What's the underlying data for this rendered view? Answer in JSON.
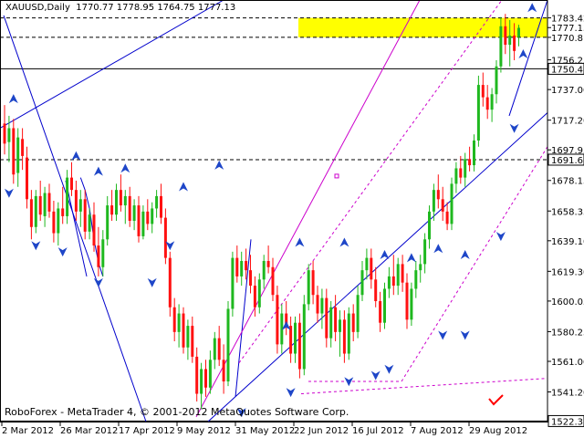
{
  "header": {
    "symbol": "XAUUSD,Daily",
    "open": "1770.77",
    "high": "1778.95",
    "low": "1764.75",
    "close": "1777.13"
  },
  "footer": {
    "text": "RoboForex - MetaTrader 4, © 2001-2012 MetaQuotes Software Corp."
  },
  "colors": {
    "bull": "#1fb81f",
    "bear": "#ff1111",
    "trend": "#0000cc",
    "channel": "#cc00cc",
    "fractal": "#1e46c8",
    "zone": "#ffff00",
    "check": "#ff0000"
  },
  "icons": [
    "fractal-arrow-up-icon",
    "fractal-arrow-down-icon",
    "checkmark-icon"
  ],
  "chart_data": {
    "type": "candlestick",
    "y_ticks": [
      "1783.42",
      "1777.13",
      "1770.81",
      "1756.25",
      "1750.44",
      "1737.00",
      "1717.20",
      "1697.95",
      "1691.60",
      "1678.15",
      "1658.35",
      "1639.10",
      "1619.30",
      "1600.05",
      "1580.25",
      "1561.00",
      "1541.20",
      "1522.34"
    ],
    "highlighted_levels": [
      "1750.44",
      "1691.60",
      "1522.34"
    ],
    "dashed_levels": [
      "1783.42",
      "1770.81",
      "1691.60"
    ],
    "x_labels": [
      "2 Mar 2012",
      "26 Mar 2012",
      "17 Apr 2012",
      "9 May 2012",
      "31 May 2012",
      "22 Jun 2012",
      "16 Jul 2012",
      "7 Aug 2012",
      "29 Aug 2012"
    ],
    "ylim": [
      1522,
      1795
    ],
    "price_zone": [
      "1770.81",
      "1783.42"
    ],
    "candles": [
      {
        "o": 1715,
        "h": 1727,
        "l": 1695,
        "c": 1702
      },
      {
        "o": 1703,
        "h": 1720,
        "l": 1690,
        "c": 1712
      },
      {
        "o": 1712,
        "h": 1718,
        "l": 1676,
        "c": 1682
      },
      {
        "o": 1683,
        "h": 1712,
        "l": 1674,
        "c": 1706
      },
      {
        "o": 1705,
        "h": 1712,
        "l": 1685,
        "c": 1694
      },
      {
        "o": 1693,
        "h": 1700,
        "l": 1660,
        "c": 1666
      },
      {
        "o": 1666,
        "h": 1672,
        "l": 1640,
        "c": 1648
      },
      {
        "o": 1648,
        "h": 1672,
        "l": 1644,
        "c": 1668
      },
      {
        "o": 1668,
        "h": 1678,
        "l": 1652,
        "c": 1656
      },
      {
        "o": 1655,
        "h": 1674,
        "l": 1648,
        "c": 1670
      },
      {
        "o": 1670,
        "h": 1676,
        "l": 1654,
        "c": 1658
      },
      {
        "o": 1658,
        "h": 1665,
        "l": 1638,
        "c": 1644
      },
      {
        "o": 1644,
        "h": 1664,
        "l": 1636,
        "c": 1660
      },
      {
        "o": 1660,
        "h": 1674,
        "l": 1650,
        "c": 1655
      },
      {
        "o": 1655,
        "h": 1685,
        "l": 1650,
        "c": 1680
      },
      {
        "o": 1680,
        "h": 1690,
        "l": 1668,
        "c": 1672
      },
      {
        "o": 1672,
        "h": 1678,
        "l": 1652,
        "c": 1658
      },
      {
        "o": 1658,
        "h": 1672,
        "l": 1648,
        "c": 1666
      },
      {
        "o": 1666,
        "h": 1672,
        "l": 1640,
        "c": 1645
      },
      {
        "o": 1645,
        "h": 1660,
        "l": 1640,
        "c": 1656
      },
      {
        "o": 1656,
        "h": 1664,
        "l": 1632,
        "c": 1636
      },
      {
        "o": 1636,
        "h": 1648,
        "l": 1616,
        "c": 1622
      },
      {
        "o": 1622,
        "h": 1646,
        "l": 1616,
        "c": 1640
      },
      {
        "o": 1640,
        "h": 1668,
        "l": 1636,
        "c": 1662
      },
      {
        "o": 1662,
        "h": 1672,
        "l": 1652,
        "c": 1656
      },
      {
        "o": 1656,
        "h": 1676,
        "l": 1652,
        "c": 1672
      },
      {
        "o": 1672,
        "h": 1682,
        "l": 1658,
        "c": 1662
      },
      {
        "o": 1662,
        "h": 1672,
        "l": 1650,
        "c": 1668
      },
      {
        "o": 1668,
        "h": 1674,
        "l": 1648,
        "c": 1652
      },
      {
        "o": 1652,
        "h": 1666,
        "l": 1646,
        "c": 1662
      },
      {
        "o": 1662,
        "h": 1668,
        "l": 1638,
        "c": 1642
      },
      {
        "o": 1642,
        "h": 1662,
        "l": 1640,
        "c": 1658
      },
      {
        "o": 1658,
        "h": 1666,
        "l": 1646,
        "c": 1650
      },
      {
        "o": 1650,
        "h": 1664,
        "l": 1644,
        "c": 1660
      },
      {
        "o": 1660,
        "h": 1672,
        "l": 1654,
        "c": 1668
      },
      {
        "o": 1668,
        "h": 1676,
        "l": 1650,
        "c": 1654
      },
      {
        "o": 1654,
        "h": 1660,
        "l": 1624,
        "c": 1628
      },
      {
        "o": 1628,
        "h": 1632,
        "l": 1590,
        "c": 1596
      },
      {
        "o": 1596,
        "h": 1602,
        "l": 1574,
        "c": 1580
      },
      {
        "o": 1580,
        "h": 1598,
        "l": 1570,
        "c": 1592
      },
      {
        "o": 1592,
        "h": 1596,
        "l": 1566,
        "c": 1570
      },
      {
        "o": 1570,
        "h": 1588,
        "l": 1562,
        "c": 1584
      },
      {
        "o": 1584,
        "h": 1590,
        "l": 1560,
        "c": 1564
      },
      {
        "o": 1564,
        "h": 1570,
        "l": 1535,
        "c": 1540
      },
      {
        "o": 1540,
        "h": 1560,
        "l": 1530,
        "c": 1556
      },
      {
        "o": 1556,
        "h": 1562,
        "l": 1538,
        "c": 1544
      },
      {
        "o": 1544,
        "h": 1568,
        "l": 1540,
        "c": 1562
      },
      {
        "o": 1562,
        "h": 1580,
        "l": 1556,
        "c": 1576
      },
      {
        "o": 1576,
        "h": 1584,
        "l": 1558,
        "c": 1562
      },
      {
        "o": 1562,
        "h": 1572,
        "l": 1540,
        "c": 1548
      },
      {
        "o": 1548,
        "h": 1600,
        "l": 1545,
        "c": 1595
      },
      {
        "o": 1595,
        "h": 1632,
        "l": 1590,
        "c": 1628
      },
      {
        "o": 1628,
        "h": 1636,
        "l": 1612,
        "c": 1616
      },
      {
        "o": 1616,
        "h": 1632,
        "l": 1610,
        "c": 1626
      },
      {
        "o": 1626,
        "h": 1634,
        "l": 1614,
        "c": 1620
      },
      {
        "o": 1620,
        "h": 1630,
        "l": 1605,
        "c": 1610
      },
      {
        "o": 1610,
        "h": 1616,
        "l": 1590,
        "c": 1596
      },
      {
        "o": 1596,
        "h": 1618,
        "l": 1592,
        "c": 1614
      },
      {
        "o": 1614,
        "h": 1630,
        "l": 1608,
        "c": 1626
      },
      {
        "o": 1626,
        "h": 1636,
        "l": 1618,
        "c": 1622
      },
      {
        "o": 1622,
        "h": 1628,
        "l": 1600,
        "c": 1604
      },
      {
        "o": 1604,
        "h": 1610,
        "l": 1566,
        "c": 1572
      },
      {
        "o": 1572,
        "h": 1598,
        "l": 1566,
        "c": 1592
      },
      {
        "o": 1592,
        "h": 1600,
        "l": 1578,
        "c": 1584
      },
      {
        "o": 1584,
        "h": 1590,
        "l": 1560,
        "c": 1566
      },
      {
        "o": 1566,
        "h": 1590,
        "l": 1560,
        "c": 1586
      },
      {
        "o": 1586,
        "h": 1592,
        "l": 1550,
        "c": 1556
      },
      {
        "o": 1556,
        "h": 1604,
        "l": 1552,
        "c": 1598
      },
      {
        "o": 1598,
        "h": 1624,
        "l": 1594,
        "c": 1620
      },
      {
        "o": 1620,
        "h": 1626,
        "l": 1598,
        "c": 1604
      },
      {
        "o": 1604,
        "h": 1610,
        "l": 1586,
        "c": 1592
      },
      {
        "o": 1592,
        "h": 1608,
        "l": 1582,
        "c": 1602
      },
      {
        "o": 1602,
        "h": 1608,
        "l": 1570,
        "c": 1576
      },
      {
        "o": 1576,
        "h": 1600,
        "l": 1570,
        "c": 1596
      },
      {
        "o": 1596,
        "h": 1604,
        "l": 1574,
        "c": 1580
      },
      {
        "o": 1580,
        "h": 1594,
        "l": 1564,
        "c": 1588
      },
      {
        "o": 1588,
        "h": 1594,
        "l": 1560,
        "c": 1566
      },
      {
        "o": 1566,
        "h": 1596,
        "l": 1562,
        "c": 1592
      },
      {
        "o": 1592,
        "h": 1598,
        "l": 1574,
        "c": 1580
      },
      {
        "o": 1580,
        "h": 1610,
        "l": 1576,
        "c": 1604
      },
      {
        "o": 1604,
        "h": 1626,
        "l": 1600,
        "c": 1620
      },
      {
        "o": 1620,
        "h": 1634,
        "l": 1614,
        "c": 1628
      },
      {
        "o": 1628,
        "h": 1634,
        "l": 1608,
        "c": 1614
      },
      {
        "o": 1614,
        "h": 1622,
        "l": 1596,
        "c": 1600
      },
      {
        "o": 1600,
        "h": 1606,
        "l": 1580,
        "c": 1586
      },
      {
        "o": 1586,
        "h": 1612,
        "l": 1582,
        "c": 1608
      },
      {
        "o": 1608,
        "h": 1622,
        "l": 1602,
        "c": 1616
      },
      {
        "o": 1616,
        "h": 1630,
        "l": 1604,
        "c": 1610
      },
      {
        "o": 1610,
        "h": 1628,
        "l": 1604,
        "c": 1624
      },
      {
        "o": 1624,
        "h": 1630,
        "l": 1606,
        "c": 1612
      },
      {
        "o": 1612,
        "h": 1618,
        "l": 1582,
        "c": 1588
      },
      {
        "o": 1588,
        "h": 1612,
        "l": 1584,
        "c": 1608
      },
      {
        "o": 1608,
        "h": 1626,
        "l": 1602,
        "c": 1620
      },
      {
        "o": 1620,
        "h": 1630,
        "l": 1612,
        "c": 1624
      },
      {
        "o": 1624,
        "h": 1644,
        "l": 1618,
        "c": 1640
      },
      {
        "o": 1640,
        "h": 1662,
        "l": 1634,
        "c": 1658
      },
      {
        "o": 1658,
        "h": 1676,
        "l": 1652,
        "c": 1672
      },
      {
        "o": 1672,
        "h": 1682,
        "l": 1660,
        "c": 1666
      },
      {
        "o": 1666,
        "h": 1674,
        "l": 1652,
        "c": 1658
      },
      {
        "o": 1658,
        "h": 1664,
        "l": 1646,
        "c": 1650
      },
      {
        "o": 1650,
        "h": 1680,
        "l": 1646,
        "c": 1676
      },
      {
        "o": 1676,
        "h": 1690,
        "l": 1670,
        "c": 1686
      },
      {
        "o": 1686,
        "h": 1694,
        "l": 1676,
        "c": 1680
      },
      {
        "o": 1680,
        "h": 1696,
        "l": 1674,
        "c": 1692
      },
      {
        "o": 1692,
        "h": 1700,
        "l": 1684,
        "c": 1688
      },
      {
        "o": 1688,
        "h": 1708,
        "l": 1684,
        "c": 1704
      },
      {
        "o": 1704,
        "h": 1746,
        "l": 1700,
        "c": 1740
      },
      {
        "o": 1740,
        "h": 1748,
        "l": 1726,
        "c": 1732
      },
      {
        "o": 1732,
        "h": 1740,
        "l": 1718,
        "c": 1724
      },
      {
        "o": 1724,
        "h": 1738,
        "l": 1716,
        "c": 1734
      },
      {
        "o": 1734,
        "h": 1756,
        "l": 1728,
        "c": 1752
      },
      {
        "o": 1752,
        "h": 1784,
        "l": 1748,
        "c": 1778
      },
      {
        "o": 1778,
        "h": 1786,
        "l": 1760,
        "c": 1766
      },
      {
        "o": 1766,
        "h": 1782,
        "l": 1752,
        "c": 1772
      },
      {
        "o": 1772,
        "h": 1780,
        "l": 1756,
        "c": 1762
      },
      {
        "o": 1771,
        "h": 1779,
        "l": 1765,
        "c": 1777
      }
    ],
    "fractals_up": [
      [
        2,
        1727
      ],
      [
        16,
        1690
      ],
      [
        21,
        1680
      ],
      [
        27,
        1682
      ],
      [
        40,
        1670
      ],
      [
        48,
        1684
      ],
      [
        63,
        1580
      ],
      [
        66,
        1634
      ],
      [
        76,
        1634
      ],
      [
        85,
        1626
      ],
      [
        91,
        1624
      ],
      [
        97,
        1630
      ],
      [
        103,
        1626
      ],
      [
        116,
        1756
      ],
      [
        118,
        1786
      ]
    ],
    "fractals_down": [
      [
        1,
        1674
      ],
      [
        7,
        1640
      ],
      [
        13,
        1636
      ],
      [
        21,
        1616
      ],
      [
        33,
        1616
      ],
      [
        37,
        1640
      ],
      [
        53,
        1532
      ],
      [
        64,
        1545
      ],
      [
        77,
        1552
      ],
      [
        83,
        1556
      ],
      [
        86,
        1560
      ],
      [
        98,
        1582
      ],
      [
        103,
        1582
      ],
      [
        111,
        1646
      ],
      [
        114,
        1716
      ]
    ]
  }
}
